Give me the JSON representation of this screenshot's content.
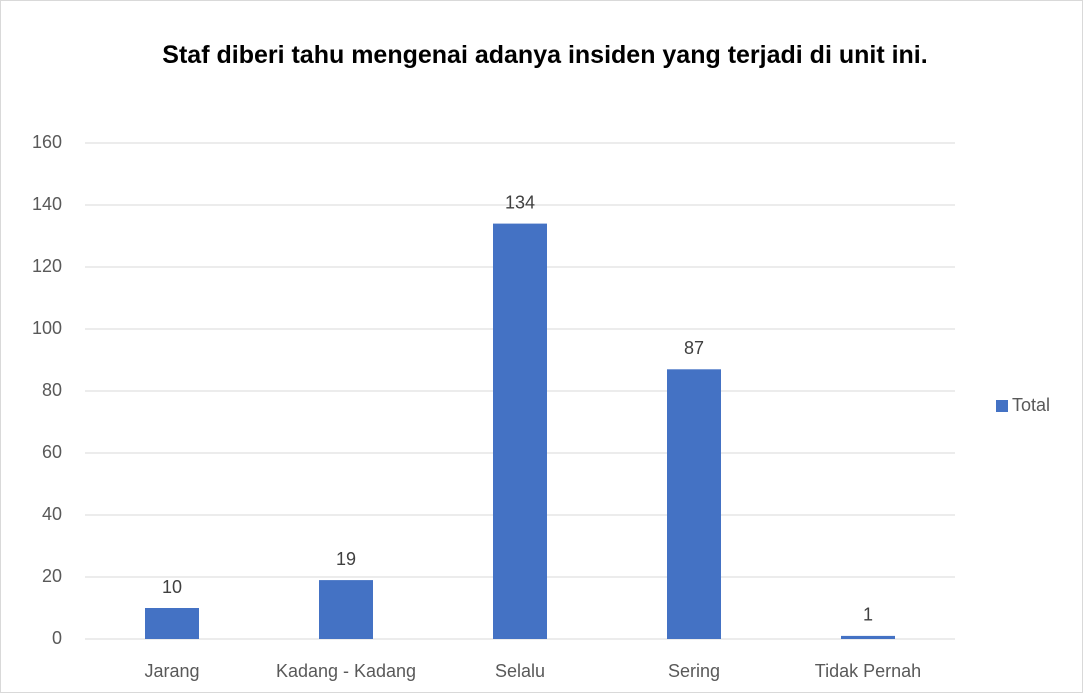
{
  "chart_data": {
    "type": "bar",
    "title": "Staf diberi tahu mengenai adanya insiden yang terjadi di unit ini.",
    "categories": [
      "Jarang",
      "Kadang - Kadang",
      "Selalu",
      "Sering",
      "Tidak Pernah"
    ],
    "series": [
      {
        "name": "Total",
        "color": "#4472c4",
        "values": [
          10,
          19,
          134,
          87,
          1
        ]
      }
    ],
    "ylim": [
      0,
      160
    ],
    "yticks": [
      0,
      20,
      40,
      60,
      80,
      100,
      120,
      140,
      160
    ],
    "grid": true,
    "legend": "right"
  }
}
